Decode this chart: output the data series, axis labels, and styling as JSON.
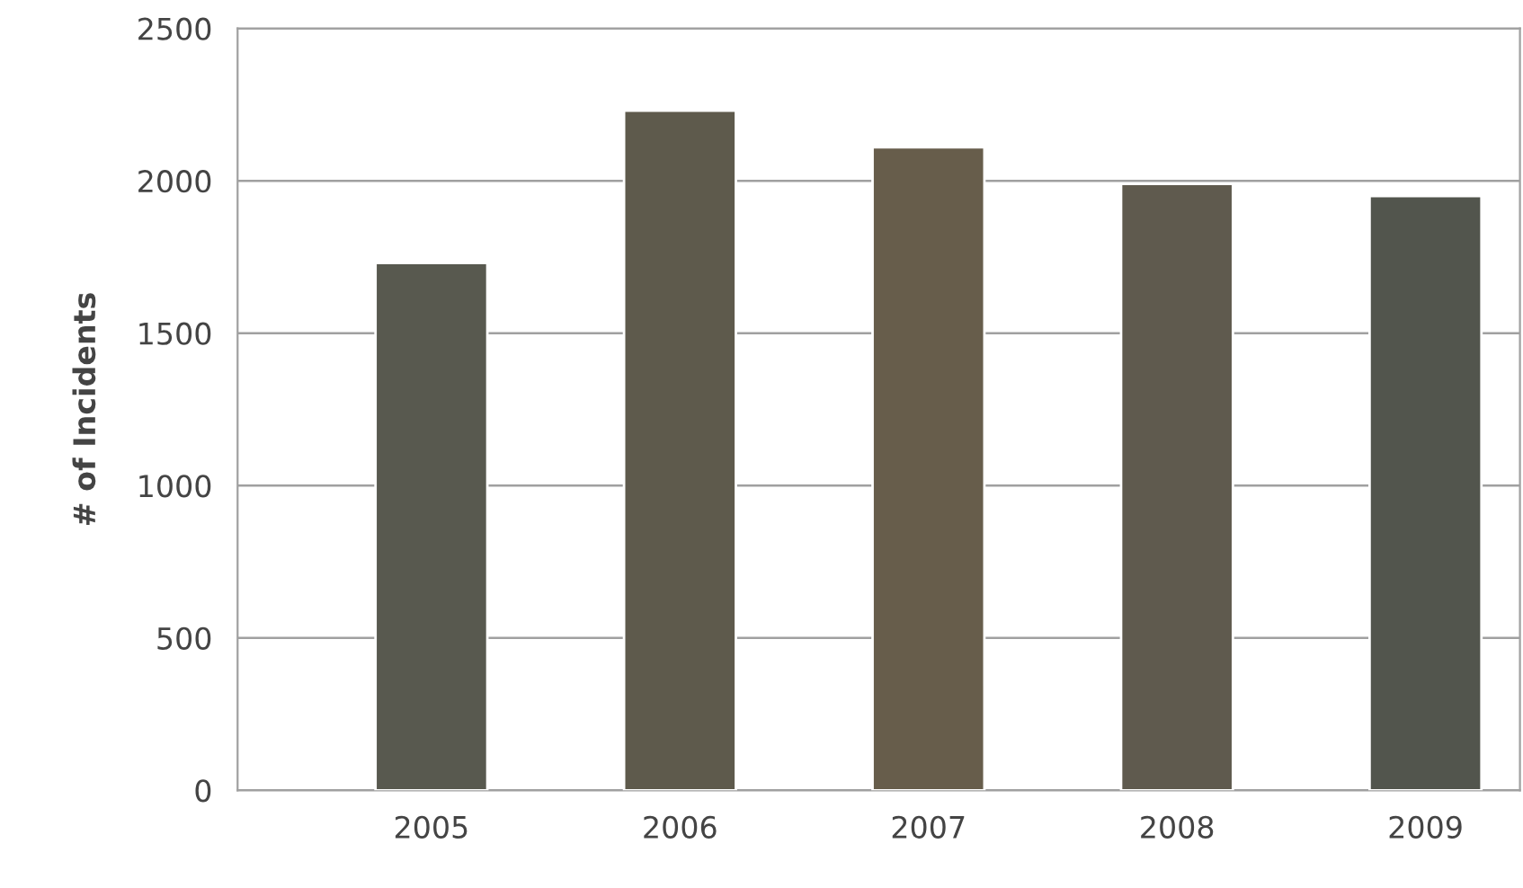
{
  "chart_data": {
    "type": "bar",
    "ylabel": "# of Incidents",
    "categories": [
      "2005",
      "2006",
      "2007",
      "2008",
      "2009"
    ],
    "values": [
      1730,
      2230,
      2110,
      1990,
      1950
    ],
    "colors": [
      "#58594f",
      "#5e5a4c",
      "#675d4b",
      "#5f5a4e",
      "#52554d"
    ],
    "ylim": [
      0,
      2500
    ],
    "yticks": [
      0,
      500,
      1000,
      1500,
      2000,
      2500
    ],
    "grid": "y"
  }
}
